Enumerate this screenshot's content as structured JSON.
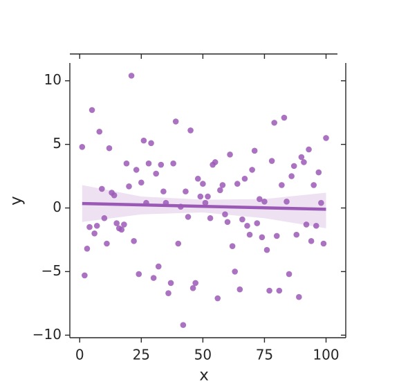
{
  "chart_data": {
    "type": "regplot",
    "x_label": "x",
    "y_label": "y",
    "color": "#9b59b6",
    "x": [
      1,
      2,
      3,
      4,
      5,
      6,
      7,
      8,
      9,
      10,
      11,
      12,
      13,
      14,
      15,
      16,
      17,
      18,
      19,
      20,
      21,
      22,
      23,
      24,
      25,
      26,
      27,
      28,
      29,
      30,
      31,
      32,
      33,
      34,
      35,
      36,
      37,
      38,
      39,
      40,
      41,
      42,
      43,
      44,
      45,
      46,
      47,
      48,
      49,
      50,
      51,
      52,
      53,
      54,
      55,
      56,
      57,
      58,
      59,
      60,
      61,
      62,
      63,
      64,
      65,
      66,
      67,
      68,
      69,
      70,
      71,
      72,
      73,
      74,
      75,
      76,
      77,
      78,
      79,
      80,
      81,
      82,
      83,
      84,
      85,
      86,
      87,
      88,
      89,
      90,
      91,
      92,
      93,
      94,
      95,
      96,
      97,
      98,
      99,
      100
    ],
    "values": [
      4.8,
      -5.3,
      -3.2,
      -1.5,
      7.7,
      -2.0,
      -1.4,
      6.0,
      1.5,
      -0.8,
      -2.8,
      4.7,
      1.2,
      1.0,
      -1.2,
      -1.6,
      -1.7,
      -1.3,
      3.5,
      1.7,
      10.4,
      -2.6,
      3.0,
      -5.2,
      2.0,
      5.3,
      0.4,
      3.5,
      5.1,
      -5.5,
      2.7,
      -4.6,
      3.4,
      1.3,
      0.4,
      -6.7,
      -5.9,
      3.5,
      6.8,
      -2.8,
      0.1,
      -9.2,
      1.3,
      -0.7,
      6.1,
      -6.3,
      -5.9,
      2.3,
      0.9,
      1.9,
      0.4,
      0.9,
      -0.8,
      3.4,
      3.6,
      -7.1,
      1.4,
      1.8,
      -0.5,
      -1.1,
      4.2,
      -3.0,
      -5.0,
      1.9,
      -6.4,
      -0.9,
      2.3,
      -1.4,
      -2.1,
      3.0,
      4.5,
      -1.2,
      0.7,
      -2.3,
      0.5,
      -3.3,
      -6.5,
      3.7,
      6.7,
      -2.2,
      -6.5,
      1.8,
      7.1,
      0.5,
      -5.2,
      2.5,
      3.3,
      -2.1,
      -7.0,
      4.0,
      3.6,
      -1.3,
      4.6,
      -2.6,
      1.8,
      -1.4,
      2.8,
      0.4,
      -2.8,
      5.5
    ],
    "regression": {
      "x": [
        1,
        100
      ],
      "y": [
        0.35,
        -0.1
      ]
    },
    "band": {
      "x": [
        1,
        25,
        50,
        75,
        100
      ],
      "upper": [
        1.8,
        0.9,
        0.65,
        0.7,
        1.2
      ],
      "lower": [
        -1.1,
        -0.5,
        -0.35,
        -0.8,
        -1.6
      ]
    },
    "xlim": [
      -4,
      108
    ],
    "ylim": [
      -10.2,
      11.4
    ],
    "xticks": [
      0,
      25,
      50,
      75,
      100
    ],
    "yticks": [
      {
        "value": -10,
        "label": "−10"
      },
      {
        "value": -5,
        "label": "−5"
      },
      0,
      5,
      10
    ]
  }
}
